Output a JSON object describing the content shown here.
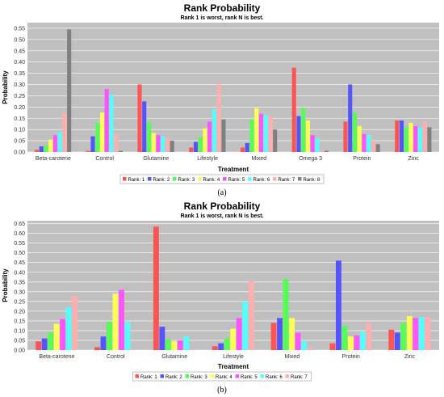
{
  "chart_data": [
    {
      "type": "bar",
      "caption": "(a)",
      "title": "Rank Probability",
      "subtitle": "Rank 1 is worst, rank N is best.",
      "xlabel": "Treatment",
      "ylabel": "Probability",
      "ylim": [
        0,
        0.575
      ],
      "yticks": [
        "0.00",
        "0.05",
        "0.10",
        "0.15",
        "0.20",
        "0.25",
        "0.30",
        "0.35",
        "0.40",
        "0.45",
        "0.50",
        "0.55"
      ],
      "grid": true,
      "legend": "bottom",
      "categories": [
        "Beta-carotene",
        "Control",
        "Glutamine",
        "Lifestyle",
        "Mixed",
        "Omega 3",
        "Protein",
        "Zinc"
      ],
      "series": [
        {
          "name": "Rank: 1",
          "color": "#ff5555",
          "values": [
            0.01,
            0.005,
            0.3,
            0.02,
            0.02,
            0.375,
            0.135,
            0.14
          ]
        },
        {
          "name": "Rank: 2",
          "color": "#5555ff",
          "values": [
            0.025,
            0.07,
            0.225,
            0.045,
            0.04,
            0.16,
            0.3,
            0.14
          ]
        },
        {
          "name": "Rank: 3",
          "color": "#55ff55",
          "values": [
            0.03,
            0.13,
            0.135,
            0.065,
            0.145,
            0.195,
            0.175,
            0.11
          ]
        },
        {
          "name": "Rank: 4",
          "color": "#ffff55",
          "values": [
            0.055,
            0.175,
            0.085,
            0.105,
            0.195,
            0.14,
            0.115,
            0.13
          ]
        },
        {
          "name": "Rank: 5",
          "color": "#ff55ff",
          "values": [
            0.075,
            0.28,
            0.075,
            0.135,
            0.17,
            0.075,
            0.08,
            0.115
          ]
        },
        {
          "name": "Rank: 6",
          "color": "#55ffff",
          "values": [
            0.09,
            0.255,
            0.07,
            0.19,
            0.165,
            0.06,
            0.075,
            0.11
          ]
        },
        {
          "name": "Rank: 7",
          "color": "#ffafaf",
          "values": [
            0.175,
            0.08,
            0.06,
            0.3,
            0.16,
            0.01,
            0.05,
            0.135
          ]
        },
        {
          "name": "Rank: 8",
          "color": "#808080",
          "values": [
            0.545,
            0.005,
            0.05,
            0.145,
            0.1,
            0.005,
            0.035,
            0.11
          ]
        }
      ]
    },
    {
      "type": "bar",
      "caption": "(b)",
      "title": "Rank Probability",
      "subtitle": "Rank 1 is worst, rank N is best.",
      "xlabel": "Treatment",
      "ylabel": "Probability",
      "ylim": [
        0,
        0.665
      ],
      "yticks": [
        "0.00",
        "0.05",
        "0.10",
        "0.15",
        "0.20",
        "0.25",
        "0.30",
        "0.35",
        "0.40",
        "0.45",
        "0.50",
        "0.55",
        "0.60",
        "0.65"
      ],
      "grid": true,
      "legend": "bottom",
      "categories": [
        "Beta-carotene",
        "Control",
        "Glutamine",
        "Lifestyle",
        "Mixed",
        "Protein",
        "Zinc"
      ],
      "series": [
        {
          "name": "Rank: 1",
          "color": "#ff5555",
          "values": [
            0.045,
            0.015,
            0.635,
            0.02,
            0.14,
            0.035,
            0.105
          ]
        },
        {
          "name": "Rank: 2",
          "color": "#5555ff",
          "values": [
            0.06,
            0.07,
            0.12,
            0.035,
            0.165,
            0.46,
            0.09
          ]
        },
        {
          "name": "Rank: 3",
          "color": "#55ff55",
          "values": [
            0.09,
            0.145,
            0.055,
            0.06,
            0.365,
            0.125,
            0.14
          ]
        },
        {
          "name": "Rank: 4",
          "color": "#ffff55",
          "values": [
            0.135,
            0.29,
            0.045,
            0.11,
            0.165,
            0.07,
            0.175
          ]
        },
        {
          "name": "Rank: 5",
          "color": "#ff55ff",
          "values": [
            0.16,
            0.31,
            0.05,
            0.165,
            0.09,
            0.075,
            0.165
          ]
        },
        {
          "name": "Rank: 6",
          "color": "#55ffff",
          "values": [
            0.22,
            0.145,
            0.07,
            0.25,
            0.045,
            0.095,
            0.17
          ]
        },
        {
          "name": "Rank: 7",
          "color": "#ffafaf",
          "values": [
            0.28,
            0.005,
            0.005,
            0.355,
            0.01,
            0.14,
            0.17
          ]
        }
      ]
    }
  ]
}
